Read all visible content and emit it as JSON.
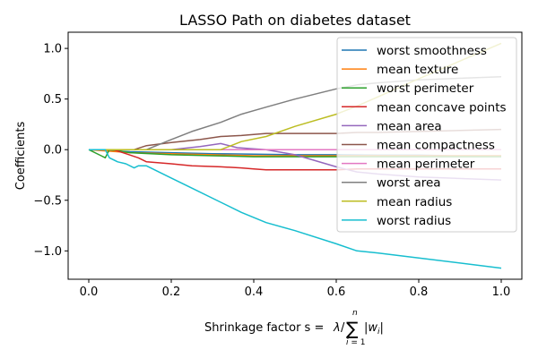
{
  "chart_data": {
    "type": "line",
    "title": "LASSO Path on diabetes dataset",
    "xlabel_prefix": "Shrinkage factor s = ",
    "ylabel": "Coefficients",
    "xlim": [
      -0.05,
      1.05
    ],
    "ylim": [
      -1.28,
      1.16
    ],
    "xticks": [
      0.0,
      0.2,
      0.4,
      0.6,
      0.8,
      1.0
    ],
    "xtick_labels": [
      "0.0",
      "0.2",
      "0.4",
      "0.6",
      "0.8",
      "1.0"
    ],
    "yticks": [
      -1.0,
      -0.5,
      0.0,
      0.5,
      1.0
    ],
    "ytick_labels": [
      "−1.0",
      "−0.5",
      "0.0",
      "0.5",
      "1.0"
    ],
    "legend_position": "upper right",
    "series": [
      {
        "name": "worst smoothness",
        "color": "#1f77b4",
        "x": [
          0,
          0.1,
          0.2,
          0.3,
          0.4,
          0.5,
          0.6,
          0.7,
          0.8,
          0.9,
          1.0
        ],
        "y": [
          0,
          -0.02,
          -0.03,
          -0.04,
          -0.045,
          -0.05,
          -0.05,
          -0.055,
          -0.055,
          -0.06,
          -0.06
        ]
      },
      {
        "name": "mean texture",
        "color": "#ff7f0e",
        "x": [
          0,
          0.1,
          0.2,
          0.3,
          0.4,
          0.5,
          0.6,
          0.7,
          0.8,
          0.9,
          1.0
        ],
        "y": [
          0,
          -0.03,
          -0.04,
          -0.05,
          -0.06,
          -0.06,
          -0.06,
          -0.06,
          -0.06,
          -0.06,
          -0.06
        ]
      },
      {
        "name": "worst perimeter",
        "color": "#2ca02c",
        "x": [
          0,
          0.03,
          0.04,
          0.05,
          0.07,
          0.1,
          0.2,
          0.3,
          0.4,
          0.5,
          0.6,
          0.8,
          1.0
        ],
        "y": [
          0,
          -0.06,
          -0.08,
          0,
          -0.01,
          -0.03,
          -0.05,
          -0.06,
          -0.07,
          -0.07,
          -0.07,
          -0.07,
          -0.07
        ]
      },
      {
        "name": "mean concave points",
        "color": "#d62728",
        "x": [
          0,
          0.06,
          0.09,
          0.12,
          0.14,
          0.2,
          0.25,
          0.32,
          0.37,
          0.4,
          0.43,
          0.5,
          0.6,
          0.65,
          0.7,
          0.8,
          1.0
        ],
        "y": [
          0,
          0,
          -0.04,
          -0.08,
          -0.12,
          -0.14,
          -0.16,
          -0.17,
          -0.18,
          -0.19,
          -0.2,
          -0.2,
          -0.2,
          -0.19,
          -0.19,
          -0.19,
          -0.19
        ]
      },
      {
        "name": "mean area",
        "color": "#9467bd",
        "x": [
          0,
          0.12,
          0.2,
          0.27,
          0.32,
          0.36,
          0.43,
          0.5,
          0.6,
          0.65,
          0.7,
          0.8,
          1.0
        ],
        "y": [
          0,
          0,
          0,
          0.03,
          0.06,
          0.02,
          0,
          -0.05,
          -0.17,
          -0.22,
          -0.24,
          -0.27,
          -0.3
        ]
      },
      {
        "name": "mean compactness",
        "color": "#8c564b",
        "x": [
          0,
          0.11,
          0.14,
          0.2,
          0.27,
          0.32,
          0.37,
          0.43,
          0.5,
          0.6,
          0.65,
          0.7,
          0.8,
          1.0
        ],
        "y": [
          0,
          0,
          0.04,
          0.07,
          0.1,
          0.13,
          0.14,
          0.16,
          0.16,
          0.16,
          0.17,
          0.17,
          0.18,
          0.2
        ]
      },
      {
        "name": "mean perimeter",
        "color": "#e377c2",
        "x": [
          0,
          0.2,
          0.4,
          0.6,
          0.8,
          1.0
        ],
        "y": [
          0,
          0,
          0,
          0,
          0,
          0
        ]
      },
      {
        "name": "worst area",
        "color": "#7f7f7f",
        "x": [
          0,
          0.14,
          0.2,
          0.25,
          0.32,
          0.37,
          0.43,
          0.5,
          0.6,
          0.65,
          0.7,
          0.8,
          1.0
        ],
        "y": [
          0,
          0,
          0.1,
          0.18,
          0.27,
          0.35,
          0.42,
          0.5,
          0.6,
          0.64,
          0.66,
          0.69,
          0.72
        ]
      },
      {
        "name": "mean radius",
        "color": "#bcbd22",
        "x": [
          0,
          0.32,
          0.37,
          0.43,
          0.5,
          0.6,
          0.65,
          0.7,
          0.8,
          1.0
        ],
        "y": [
          0,
          0,
          0.08,
          0.13,
          0.23,
          0.35,
          0.43,
          0.52,
          0.7,
          1.05
        ]
      },
      {
        "name": "worst radius",
        "color": "#17becf",
        "x": [
          0,
          0.04,
          0.05,
          0.07,
          0.09,
          0.11,
          0.12,
          0.14,
          0.2,
          0.25,
          0.32,
          0.37,
          0.43,
          0.5,
          0.6,
          0.65,
          0.7,
          0.8,
          1.0
        ],
        "y": [
          0,
          0,
          -0.08,
          -0.12,
          -0.14,
          -0.18,
          -0.16,
          -0.16,
          -0.28,
          -0.38,
          -0.52,
          -0.62,
          -0.72,
          -0.8,
          -0.93,
          -1.0,
          -1.02,
          -1.07,
          -1.17
        ]
      }
    ]
  }
}
